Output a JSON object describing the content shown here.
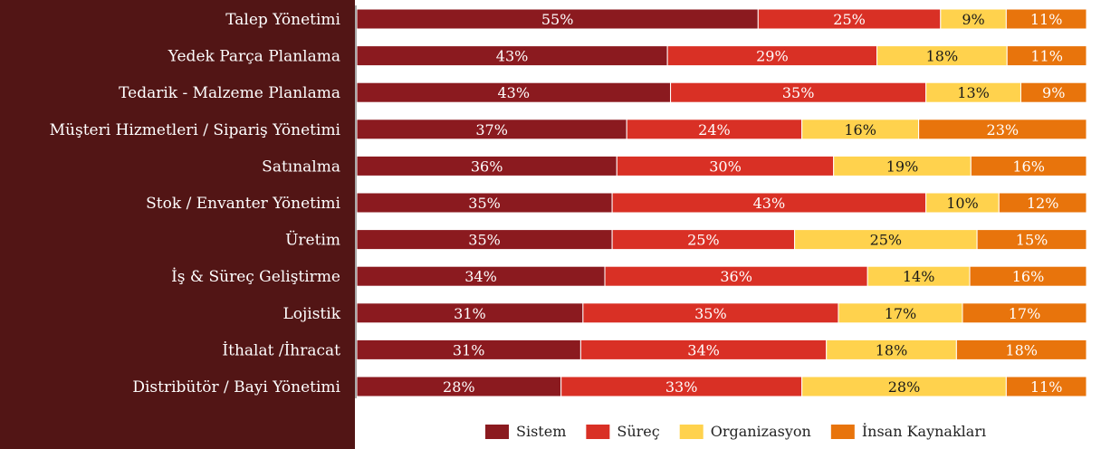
{
  "chart_data": {
    "type": "bar",
    "orientation": "horizontal",
    "stacked": true,
    "normalized": true,
    "title": "",
    "xlabel": "",
    "ylabel": "",
    "xlim": [
      0,
      100
    ],
    "grid": false,
    "legend": {
      "position": "bottom"
    },
    "colors": {
      "label_panel": "#521515",
      "label_text": "#ffffff",
      "bar_label_dark": "#ffffff",
      "bar_label_light": "#1a1a1a"
    },
    "categories": [
      "Talep Yönetimi",
      "Yedek Parça Planlama",
      "Tedarik - Malzeme Planlama",
      "Müşteri Hizmetleri / Sipariş Yönetimi",
      "Satınalma",
      "Stok / Envanter Yönetimi",
      "Üretim",
      "İş & Süreç Geliştirme",
      "Lojistik",
      "İthalat /İhracat",
      "Distribütör / Bayi Yönetimi"
    ],
    "series": [
      {
        "name": "Sistem",
        "color": "#8b1a1f",
        "label_color": "#ffffff",
        "values": [
          55,
          43,
          43,
          37,
          36,
          35,
          35,
          34,
          31,
          31,
          28
        ],
        "labels": [
          "55%",
          "43%",
          "43%",
          "37%",
          "36%",
          "35%",
          "35%",
          "34%",
          "31%",
          "31%",
          "28%"
        ]
      },
      {
        "name": "Süreç",
        "color": "#d93025",
        "label_color": "#ffffff",
        "values": [
          25,
          29,
          35,
          24,
          30,
          43,
          25,
          36,
          35,
          34,
          33
        ],
        "labels": [
          "25%",
          "29%",
          "35%",
          "24%",
          "30%",
          "43%",
          "25%",
          "36%",
          "35%",
          "34%",
          "33%"
        ]
      },
      {
        "name": "Organizasyon",
        "color": "#ffd24d",
        "label_color": "#1a1a1a",
        "values": [
          9,
          18,
          13,
          16,
          19,
          10,
          25,
          14,
          17,
          18,
          28
        ],
        "labels": [
          "9%",
          "18%",
          "13%",
          "16%",
          "19%",
          "10%",
          "25%",
          "14%",
          "17%",
          "18%",
          "28%"
        ]
      },
      {
        "name": "İnsan Kaynakları",
        "color": "#e8740c",
        "label_color": "#ffffff",
        "values": [
          11,
          11,
          9,
          23,
          16,
          12,
          15,
          16,
          17,
          18,
          11
        ],
        "labels": [
          "11%",
          "11%",
          "9%",
          "23%",
          "16%",
          "12%",
          "15%",
          "16%",
          "17%",
          "18%",
          "11%"
        ]
      }
    ]
  }
}
